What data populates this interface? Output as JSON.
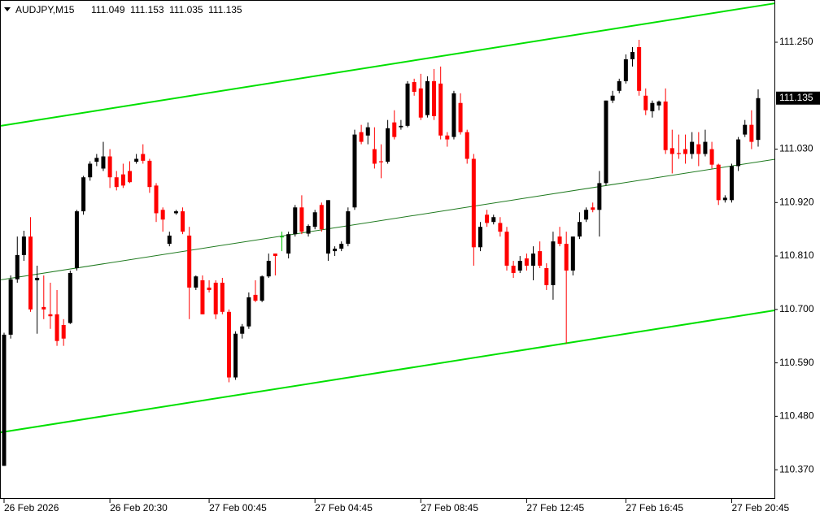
{
  "chart_data": {
    "type": "candlestick",
    "header": {
      "symbol": "AUDJPY,M15",
      "ohlc": [
        111.049,
        111.153,
        111.035,
        111.135
      ]
    },
    "categories": [
      "26 Feb 2026",
      null,
      null,
      null,
      null,
      null,
      null,
      null,
      null,
      null,
      null,
      null,
      null,
      null,
      null,
      null,
      "26 Feb 20:30",
      null,
      null,
      null,
      null,
      null,
      null,
      null,
      null,
      null,
      null,
      null,
      null,
      null,
      null,
      "27 Feb 00:45",
      null,
      null,
      null,
      null,
      null,
      null,
      null,
      null,
      null,
      null,
      null,
      null,
      null,
      null,
      null,
      "27 Feb 04:45",
      null,
      null,
      null,
      null,
      null,
      null,
      null,
      null,
      null,
      null,
      null,
      null,
      null,
      null,
      null,
      "27 Feb 08:45",
      null,
      null,
      null,
      null,
      null,
      null,
      null,
      null,
      null,
      null,
      null,
      null,
      null,
      null,
      null,
      "27 Feb 12:45",
      null,
      null,
      null,
      null,
      null,
      null,
      null,
      null,
      null,
      null,
      null,
      null,
      null,
      null,
      "27 Feb 16:45",
      null,
      null,
      null,
      null,
      null,
      null,
      null,
      null,
      null,
      null,
      null,
      null,
      null,
      null,
      null,
      "27 Feb 20:45",
      null,
      null,
      null,
      null
    ],
    "open": [
      110.378,
      110.648,
      110.762,
      110.812,
      110.85,
      110.76,
      110.705,
      110.69,
      110.69,
      110.668,
      110.672,
      110.785,
      110.902,
      110.972,
      111.004,
      110.99,
      111.015,
      110.972,
      110.978,
      110.985,
      111.004,
      111.02,
      111.006,
      110.955,
      110.905,
      110.835,
      110.898,
      110.902,
      110.852,
      110.745,
      110.76,
      110.745,
      110.755,
      110.755,
      110.695,
      110.56,
      110.65,
      110.665,
      110.73,
      110.718,
      110.768,
      110.815,
      110.85,
      110.815,
      110.855,
      110.91,
      110.856,
      110.87,
      110.915,
      110.815,
      110.82,
      110.825,
      110.835,
      110.91,
      111.065,
      111.058,
      111.03,
      111.005,
      111.004,
      111.085,
      111.075,
      111.078,
      111.168,
      111.155,
      111.1,
      111.17,
      111.165,
      111.058,
      111.055,
      111.125,
      111.065,
      111.01,
      110.828,
      110.895,
      110.88,
      110.878,
      110.86,
      110.79,
      110.78,
      110.805,
      110.79,
      110.82,
      110.785,
      110.75,
      110.85,
      110.835,
      110.78,
      110.85,
      110.885,
      110.91,
      110.905,
      110.96,
      111.13,
      111.15,
      111.17,
      111.215,
      111.24,
      111.14,
      111.108,
      111.12,
      111.128,
      111.032,
      111.022,
      111.03,
      111.02,
      111.04,
      111.02,
      111.03,
      110.998,
      110.925,
      110.925,
      110.995,
      111.06,
      111.08,
      111.049
    ],
    "high": [
      110.652,
      110.77,
      110.85,
      110.862,
      110.89,
      110.79,
      110.77,
      110.755,
      110.74,
      110.68,
      110.78,
      110.905,
      110.975,
      111.005,
      111.02,
      111.045,
      111.03,
      110.985,
      111.0,
      111.005,
      111.02,
      111.04,
      111.01,
      110.96,
      110.91,
      110.86,
      110.905,
      110.91,
      110.87,
      110.77,
      110.77,
      110.76,
      110.76,
      110.765,
      110.7,
      110.655,
      110.67,
      110.735,
      110.76,
      110.77,
      110.815,
      110.815,
      110.86,
      110.86,
      110.915,
      110.935,
      110.875,
      110.905,
      110.92,
      110.925,
      110.83,
      110.84,
      110.91,
      111.07,
      111.08,
      111.085,
      111.075,
      111.04,
      111.09,
      111.11,
      111.09,
      111.17,
      111.175,
      111.185,
      111.18,
      111.195,
      111.2,
      111.065,
      111.15,
      111.145,
      111.07,
      111.02,
      110.88,
      110.905,
      110.895,
      110.89,
      110.87,
      110.8,
      110.81,
      110.815,
      110.83,
      110.84,
      110.795,
      110.86,
      110.87,
      110.86,
      110.85,
      110.9,
      110.91,
      110.92,
      110.985,
      111.13,
      111.15,
      111.175,
      111.225,
      111.24,
      111.255,
      111.155,
      111.13,
      111.13,
      111.155,
      111.07,
      111.06,
      111.06,
      111.065,
      111.065,
      111.07,
      111.045,
      111.0,
      110.935,
      111.0,
      111.055,
      111.09,
      111.11,
      111.153
    ],
    "low": [
      110.378,
      110.64,
      110.755,
      110.8,
      110.695,
      110.65,
      110.68,
      110.66,
      110.625,
      110.625,
      110.67,
      110.78,
      110.895,
      110.965,
      110.995,
      110.985,
      110.95,
      110.945,
      110.95,
      110.96,
      111.0,
      111.0,
      110.94,
      110.88,
      110.86,
      110.83,
      110.895,
      110.855,
      110.68,
      110.74,
      110.69,
      110.735,
      110.68,
      110.69,
      110.55,
      110.555,
      110.64,
      110.66,
      110.715,
      110.715,
      110.765,
      110.77,
      110.82,
      110.805,
      110.85,
      110.855,
      110.85,
      110.865,
      110.86,
      110.8,
      110.81,
      110.82,
      110.83,
      110.905,
      111.04,
      111.04,
      110.99,
      110.97,
      111.0,
      111.05,
      111.07,
      111.075,
      111.14,
      111.09,
      111.095,
      111.09,
      111.05,
      111.035,
      111.05,
      111.06,
      111.0,
      110.79,
      110.82,
      110.87,
      110.875,
      110.85,
      110.78,
      110.765,
      110.775,
      110.78,
      110.76,
      110.785,
      110.74,
      110.72,
      110.83,
      110.63,
      110.77,
      110.845,
      110.88,
      110.9,
      110.85,
      110.955,
      111.125,
      111.145,
      111.165,
      111.2,
      111.14,
      111.1,
      111.095,
      111.11,
      111.02,
      110.98,
      111.01,
      111.0,
      111.01,
      110.995,
      111.015,
      110.99,
      110.915,
      110.92,
      110.92,
      110.985,
      111.055,
      111.03,
      111.035
    ],
    "close": [
      110.648,
      110.762,
      110.812,
      110.85,
      110.7,
      110.765,
      110.7,
      110.686,
      110.635,
      110.64,
      110.775,
      110.902,
      110.972,
      111.0,
      111.012,
      111.015,
      110.972,
      110.952,
      110.955,
      110.962,
      111.01,
      111.006,
      110.952,
      110.898,
      110.885,
      110.852,
      110.902,
      110.86,
      110.745,
      110.768,
      110.69,
      110.74,
      110.69,
      110.695,
      110.56,
      110.65,
      110.665,
      110.725,
      110.718,
      110.768,
      110.8,
      110.81,
      110.85,
      110.855,
      110.91,
      110.86,
      110.872,
      110.9,
      110.865,
      110.925,
      110.825,
      110.835,
      110.902,
      111.06,
      111.045,
      111.075,
      111.0,
      111.003,
      111.073,
      111.055,
      111.078,
      111.165,
      111.148,
      111.095,
      111.17,
      111.098,
      111.058,
      111.05,
      111.145,
      111.065,
      111.01,
      110.828,
      110.87,
      110.878,
      110.89,
      110.86,
      110.79,
      110.775,
      110.8,
      110.79,
      110.815,
      110.79,
      110.75,
      110.84,
      110.835,
      110.78,
      110.85,
      110.88,
      110.905,
      110.905,
      110.96,
      111.13,
      111.14,
      111.17,
      111.215,
      111.23,
      111.15,
      111.11,
      111.125,
      111.128,
      111.028,
      111.02,
      111.02,
      111.02,
      111.045,
      111.02,
      111.045,
      110.998,
      110.925,
      110.93,
      110.995,
      111.05,
      111.08,
      111.045,
      111.135
    ],
    "up_color": "#000000",
    "down_color": "#ff0000",
    "doji_color": "#00c000",
    "channels": [
      {
        "color": "#00e000",
        "values": [
          111.078,
          111.33
        ]
      },
      {
        "color": "#1f7a1f",
        "values": [
          110.761,
          111.009
        ]
      },
      {
        "color": "#00e000",
        "values": [
          110.447,
          110.698
        ]
      }
    ],
    "last_price": 111.135,
    "ylim": [
      110.31,
      111.337
    ],
    "yticks": [
      {
        "value": 110.37,
        "label": "110.370"
      },
      {
        "value": 110.48,
        "label": "110.480"
      },
      {
        "value": 110.59,
        "label": "110.590"
      },
      {
        "value": 110.7,
        "label": "110.700"
      },
      {
        "value": 110.81,
        "label": "110.810"
      },
      {
        "value": 110.92,
        "label": "110.920"
      },
      {
        "value": 111.03,
        "label": "111.030"
      },
      {
        "value": 111.25,
        "label": "111.250"
      }
    ]
  }
}
